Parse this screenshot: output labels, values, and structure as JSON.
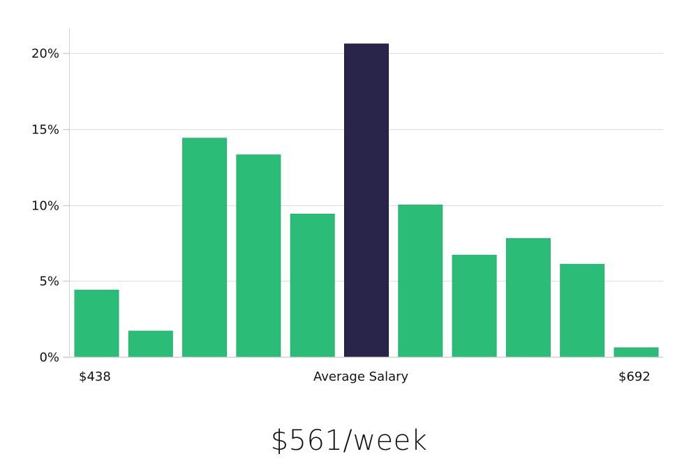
{
  "chart_data": {
    "type": "bar",
    "title": "",
    "xlabel": "Average Salary",
    "ylabel": "",
    "ylim": [
      0,
      21.5
    ],
    "yticks": [
      "0%",
      "5%",
      "10%",
      "15%",
      "20%"
    ],
    "ytick_values": [
      0,
      5,
      10,
      15,
      20
    ],
    "grid": true,
    "categories": [
      "bin1",
      "bin2",
      "bin3",
      "bin4",
      "bin5",
      "bin6",
      "bin7",
      "bin8",
      "bin9",
      "bin10",
      "bin11"
    ],
    "values": [
      4.4,
      1.7,
      14.4,
      13.3,
      9.4,
      20.6,
      10.0,
      6.7,
      7.8,
      6.1,
      0.6
    ],
    "highlight_index": 5,
    "x_range_labels": {
      "min": "$438",
      "max": "$692"
    },
    "colors": {
      "bar": "#2bbd77",
      "highlight": "#28244a",
      "grid": "#dddddd",
      "axis": "#cccccc"
    }
  },
  "axis": {
    "x_min_label": "$438",
    "x_center_label": "Average Salary",
    "x_max_label": "$692"
  },
  "headline": "$561/week"
}
